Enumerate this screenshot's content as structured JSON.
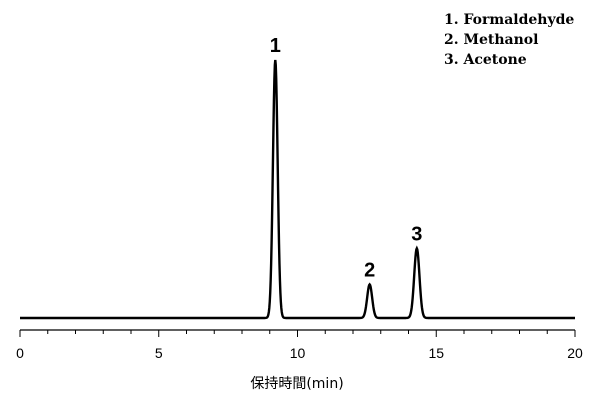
{
  "chart_data": {
    "type": "line",
    "xlabel": "保持時間(min)",
    "xlim": [
      0,
      20
    ],
    "x_ticks": [
      "0",
      "5",
      "10",
      "15",
      "20"
    ],
    "grid": false,
    "legend_position": "top-right",
    "legend": [
      "1. Formaldehyde",
      "2. Methanol",
      "3. Acetone"
    ],
    "baseline": 0,
    "peaks": [
      {
        "label": "1",
        "retention_time": 9.2,
        "height": 100
      },
      {
        "label": "2",
        "retention_time": 12.6,
        "height": 13
      },
      {
        "label": "3",
        "retention_time": 14.3,
        "height": 27
      }
    ]
  }
}
